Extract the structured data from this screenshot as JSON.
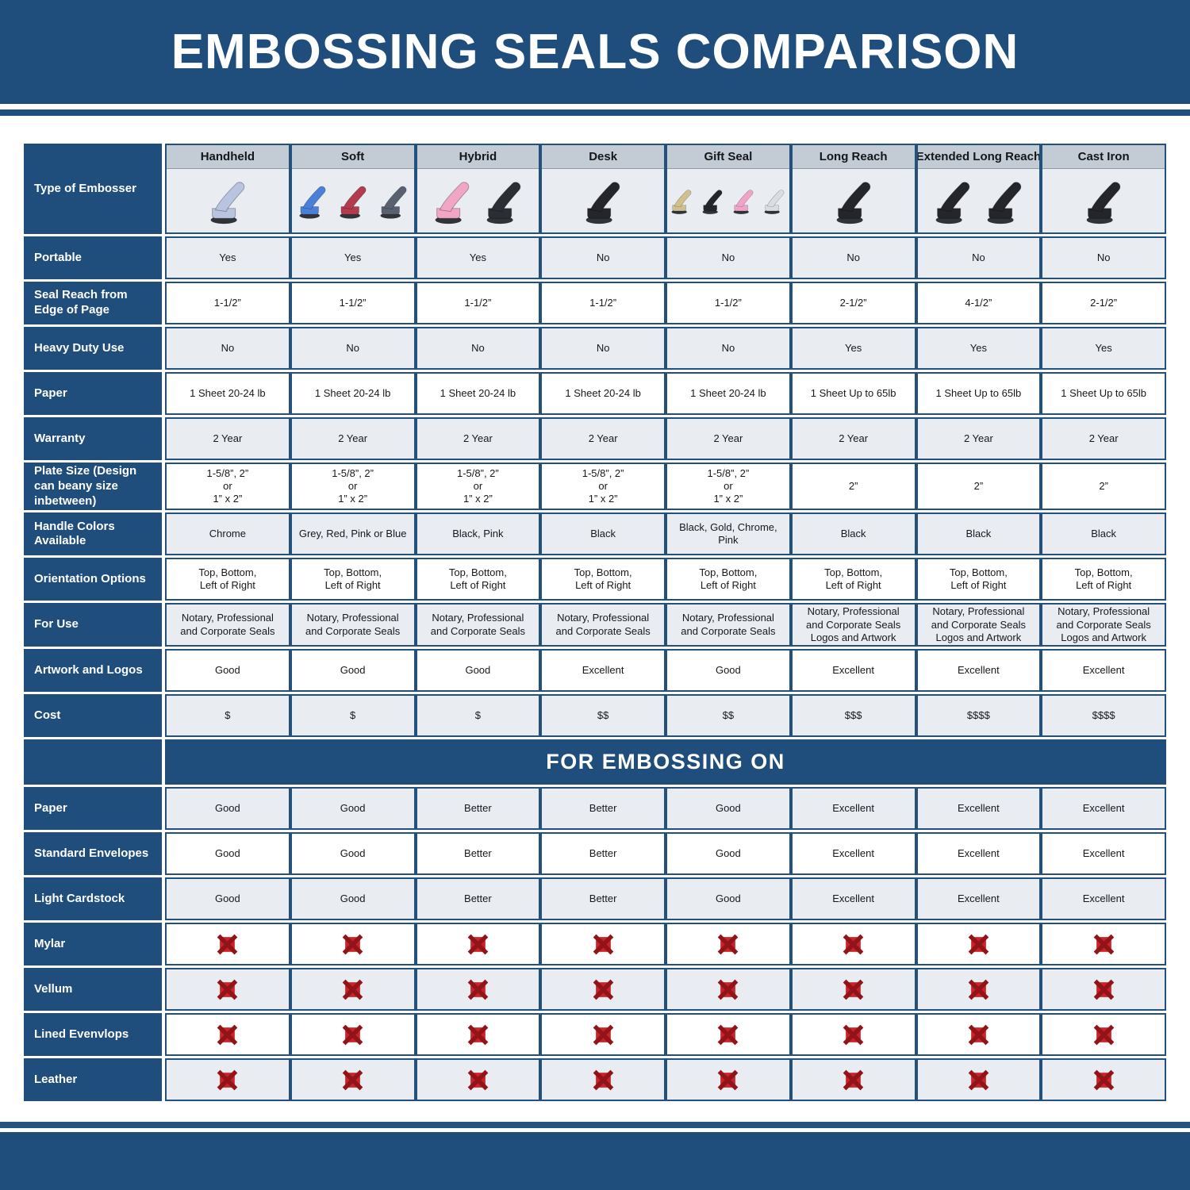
{
  "title": "EMBOSSING SEALS COMPARISON",
  "colors": {
    "navy": "#1f4e7c",
    "cell_border": "#24517c",
    "column_header_band": "#c3ccd5",
    "alt_row": "#e9edf1",
    "x_square_red": "#c9242a",
    "x_stroke_dark": "#921419"
  },
  "chart_data": {
    "type": "table",
    "title": "EMBOSSING SEALS COMPARISON",
    "type_row_label": "Type of Embosser",
    "column_headers": [
      "Handheld",
      "Soft",
      "Hybrid",
      "Desk",
      "Gift Seal",
      "Long Reach",
      "Extended Long Reach",
      "Cast Iron"
    ],
    "embosser_images": [
      {
        "alt": "chrome handheld embosser",
        "colors": [
          "#b9c4e0"
        ]
      },
      {
        "alt": "blue red and grey soft embossers",
        "colors": [
          "#4b80d9",
          "#b23c4e",
          "#596170"
        ]
      },
      {
        "alt": "pink and black hybrid embossers",
        "colors": [
          "#f2a6c6",
          "#2b2e34"
        ]
      },
      {
        "alt": "black desk embosser",
        "colors": [
          "#24262c"
        ]
      },
      {
        "alt": "gold black pink and chrome gift seal embossers",
        "colors": [
          "#cfc08e",
          "#23262b",
          "#f0a4c8",
          "#d9dde4"
        ]
      },
      {
        "alt": "black long reach embosser",
        "colors": [
          "#24262c"
        ]
      },
      {
        "alt": "two black extended long reach embossers",
        "colors": [
          "#24262c",
          "#24262c"
        ]
      },
      {
        "alt": "black cast iron embosser",
        "colors": [
          "#24262c"
        ]
      }
    ],
    "section1_rows": [
      {
        "label": "Portable",
        "values": [
          "Yes",
          "Yes",
          "Yes",
          "No",
          "No",
          "No",
          "No",
          "No"
        ]
      },
      {
        "label": "Seal Reach from Edge of Page",
        "values": [
          "1-1/2”",
          "1-1/2”",
          "1-1/2”",
          "1-1/2”",
          "1-1/2”",
          "2-1/2”",
          "4-1/2”",
          "2-1/2”"
        ]
      },
      {
        "label": "Heavy Duty Use",
        "values": [
          "No",
          "No",
          "No",
          "No",
          "No",
          "Yes",
          "Yes",
          "Yes"
        ]
      },
      {
        "label": "Paper",
        "values": [
          "1 Sheet 20-24 lb",
          "1 Sheet 20-24 lb",
          "1 Sheet 20-24 lb",
          "1 Sheet 20-24 lb",
          "1 Sheet 20-24 lb",
          "1 Sheet Up to 65lb",
          "1 Sheet Up to 65lb",
          "1 Sheet Up to 65lb"
        ]
      },
      {
        "label": "Warranty",
        "values": [
          "2 Year",
          "2 Year",
          "2 Year",
          "2 Year",
          "2 Year",
          "2 Year",
          "2 Year",
          "2 Year"
        ]
      },
      {
        "label": "Plate Size (Design can beany size inbetween)",
        "values": [
          "1-5/8”, 2”\nor\n1” x 2”",
          "1-5/8”, 2”\nor\n1” x 2”",
          "1-5/8”, 2”\nor\n1” x 2”",
          "1-5/8”, 2”\nor\n1” x 2”",
          "1-5/8”, 2”\nor\n1” x 2”",
          "2”",
          "2”",
          "2”"
        ]
      },
      {
        "label": "Handle Colors Available",
        "values": [
          "Chrome",
          "Grey, Red, Pink or Blue",
          "Black, Pink",
          "Black",
          "Black, Gold, Chrome, Pink",
          "Black",
          "Black",
          "Black"
        ]
      },
      {
        "label": "Orientation Options",
        "values": [
          "Top, Bottom,\nLeft of Right",
          "Top, Bottom,\nLeft of Right",
          "Top, Bottom,\nLeft of Right",
          "Top, Bottom,\nLeft of Right",
          "Top, Bottom,\nLeft of Right",
          "Top, Bottom,\nLeft of Right",
          "Top, Bottom,\nLeft of Right",
          "Top, Bottom,\nLeft of Right"
        ]
      },
      {
        "label": "For Use",
        "values": [
          "Notary, Professional\nand Corporate Seals",
          "Notary, Professional\nand Corporate Seals",
          "Notary, Professional\nand Corporate Seals",
          "Notary, Professional\nand Corporate Seals",
          "Notary, Professional\nand Corporate Seals",
          "Notary, Professional\nand Corporate Seals\nLogos and Artwork",
          "Notary, Professional\nand Corporate Seals\nLogos and Artwork",
          "Notary, Professional\nand Corporate Seals\nLogos and Artwork"
        ]
      },
      {
        "label": "Artwork and Logos",
        "values": [
          "Good",
          "Good",
          "Good",
          "Excellent",
          "Good",
          "Excellent",
          "Excellent",
          "Excellent"
        ]
      },
      {
        "label": "Cost",
        "values": [
          "$",
          "$",
          "$",
          "$$",
          "$$",
          "$$$",
          "$$$$",
          "$$$$"
        ]
      }
    ],
    "section2_title": "FOR EMBOSSING ON",
    "section2_rows": [
      {
        "label": "Paper",
        "values": [
          "Good",
          "Good",
          "Better",
          "Better",
          "Good",
          "Excellent",
          "Excellent",
          "Excellent"
        ]
      },
      {
        "label": "Standard Envelopes",
        "values": [
          "Good",
          "Good",
          "Better",
          "Better",
          "Good",
          "Excellent",
          "Excellent",
          "Excellent"
        ]
      },
      {
        "label": "Light Cardstock",
        "values": [
          "Good",
          "Good",
          "Better",
          "Better",
          "Good",
          "Excellent",
          "Excellent",
          "Excellent"
        ]
      },
      {
        "label": "Mylar",
        "icon": "x-icon"
      },
      {
        "label": "Vellum",
        "icon": "x-icon"
      },
      {
        "label": "Lined Evenvlops",
        "icon": "x-icon"
      },
      {
        "label": "Leather",
        "icon": "x-icon"
      }
    ]
  }
}
